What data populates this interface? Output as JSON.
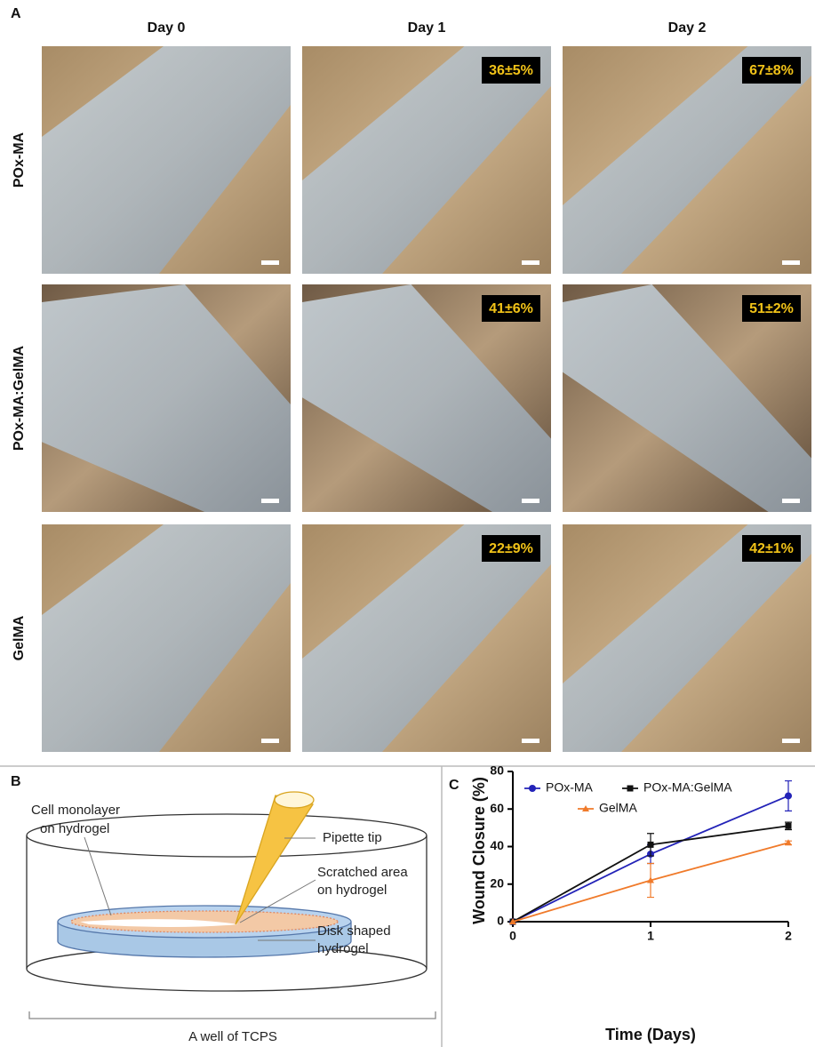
{
  "panel_a": {
    "label": "A",
    "columns": [
      "Day 0",
      "Day 1",
      "Day 2"
    ],
    "rows": [
      "POx-MA",
      "POx-MA:GelMA",
      "GelMA"
    ],
    "closure_labels": [
      [
        null,
        "36±5%",
        "67±8%"
      ],
      [
        null,
        "41±6%",
        "51±2%"
      ],
      [
        null,
        "22±9%",
        "42±1%"
      ]
    ]
  },
  "panel_b": {
    "label": "B",
    "callouts": [
      "Cell monolayer",
      "on hydrogel",
      "Pipette tip",
      "Scratched area",
      "on hydrogel",
      "Disk shaped",
      "hydrogel"
    ],
    "caption": "A well of TCPS"
  },
  "chart_data": {
    "type": "line",
    "panel_label": "C",
    "x_label": "Time (Days)",
    "y_label": "Wound Closure (%)",
    "x": [
      0,
      1,
      2
    ],
    "xlim": [
      0,
      2
    ],
    "xticks": [
      0,
      1,
      2
    ],
    "ylim": [
      0,
      80
    ],
    "yticks": [
      0,
      20,
      40,
      60,
      80
    ],
    "series": [
      {
        "name": "POx-MA",
        "color": "#2323b8",
        "marker": "circle",
        "values": [
          0,
          36,
          67
        ],
        "errors": [
          0,
          5,
          8
        ]
      },
      {
        "name": "POx-MA:GelMA",
        "color": "#111111",
        "marker": "square",
        "values": [
          0,
          41,
          51
        ],
        "errors": [
          0,
          6,
          2
        ]
      },
      {
        "name": "GelMA",
        "color": "#f07a2a",
        "marker": "triangle",
        "values": [
          0,
          22,
          42
        ],
        "errors": [
          0,
          9,
          1
        ]
      }
    ]
  }
}
